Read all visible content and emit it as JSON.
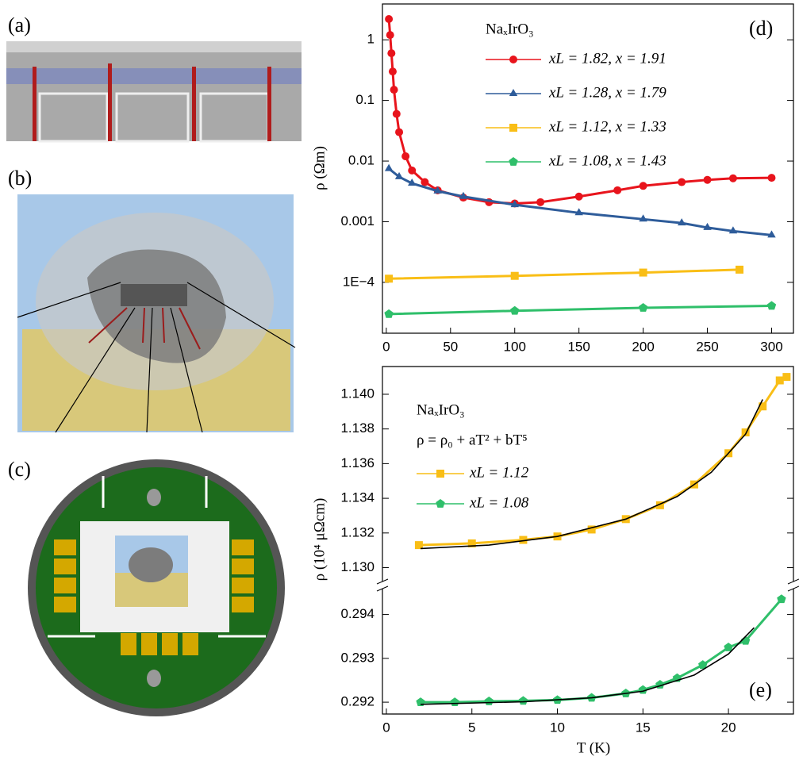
{
  "panels": [
    "(a)",
    "(b)",
    "(c)"
  ],
  "chart_data": [
    {
      "type": "line",
      "panel_label": "(d)",
      "log_y": true,
      "title": "NaₓIrO₃",
      "y_label": "ρ (Ωm)",
      "xlim": [
        -3,
        317
      ],
      "xticks": [
        0,
        50,
        100,
        150,
        200,
        250,
        300
      ],
      "ylim": [
        1.45e-05,
        3.9
      ],
      "yticks": [
        1,
        0.1,
        0.01,
        0.001,
        {
          "value": 0.0001,
          "label": "1E−4"
        }
      ],
      "series": [
        {
          "name": "xL = 1.82, x = 1.91",
          "color": "#e8141c",
          "marker": "circle",
          "x": [
            2,
            3,
            4,
            5,
            6,
            8,
            10,
            15,
            20,
            30,
            40,
            60,
            80,
            100,
            120,
            150,
            180,
            200,
            230,
            250,
            270,
            300
          ],
          "values": [
            2.2,
            1.2,
            0.6,
            0.3,
            0.15,
            0.06,
            0.03,
            0.012,
            0.007,
            0.0045,
            0.0033,
            0.0025,
            0.0021,
            0.002,
            0.0021,
            0.0026,
            0.0033,
            0.0039,
            0.0045,
            0.0049,
            0.0052,
            0.0053
          ]
        },
        {
          "name": "xL = 1.28, x = 1.79",
          "color": "#2e5c9a",
          "marker": "triangle",
          "x": [
            2,
            10,
            20,
            40,
            60,
            100,
            150,
            200,
            230,
            250,
            270,
            300
          ],
          "values": [
            0.0075,
            0.0055,
            0.0043,
            0.0032,
            0.0026,
            0.0019,
            0.0014,
            0.0011,
            0.00095,
            0.0008,
            0.0007,
            0.0006
          ]
        },
        {
          "name": "xL = 1.12, x = 1.33",
          "color": "#f9be16",
          "marker": "square",
          "x": [
            2,
            100,
            200,
            275
          ],
          "values": [
            0.000115,
            0.000128,
            0.000145,
            0.000162
          ]
        },
        {
          "name": "xL = 1.08, x = 1.43",
          "color": "#2fbf6a",
          "marker": "pentagon",
          "x": [
            2,
            100,
            200,
            300
          ],
          "values": [
            3e-05,
            3.4e-05,
            3.8e-05,
            4.1e-05
          ]
        }
      ]
    },
    {
      "type": "broken-line",
      "panel_label": "(e)",
      "title": "NaₓIrO₃",
      "annotation": "ρ = ρ₀ + aT² + bT⁵",
      "y_label": "ρ (10⁴ μΩcm)",
      "x_label": "T (K)",
      "xlim": [
        -0.23,
        23.8
      ],
      "xticks": [
        0,
        5,
        10,
        15,
        20
      ],
      "ylim_upper": [
        1.1292,
        1.1416
      ],
      "yticks_upper": [
        {
          "value": 1.13,
          "label": "1.130"
        },
        1.132,
        1.134,
        1.136,
        1.138,
        {
          "value": 1.14,
          "label": "1.140"
        }
      ],
      "ylim": [
        0.29173,
        0.29459
      ],
      "yticks": [
        0.292,
        0.293,
        0.294
      ],
      "series": [
        {
          "name": "xL = 1.12",
          "color": "#f9be16",
          "marker": "square",
          "axis": "upper",
          "x": [
            1.9,
            5,
            8,
            10,
            12,
            14,
            16,
            18,
            20,
            21,
            22,
            23,
            23.4
          ],
          "values": [
            1.1313,
            1.1314,
            1.1316,
            1.1318,
            1.1322,
            1.1328,
            1.1336,
            1.1348,
            1.1366,
            1.1378,
            1.1393,
            1.1408,
            1.141
          ]
        },
        {
          "name": "xL = 1.08",
          "color": "#2fbf6a",
          "marker": "pentagon",
          "axis": "lower",
          "x": [
            2,
            4,
            6,
            8,
            10,
            12,
            14,
            15,
            16,
            17,
            18.5,
            20,
            21,
            23.1
          ],
          "values": [
            0.292,
            0.292,
            0.29202,
            0.29203,
            0.29205,
            0.2921,
            0.2922,
            0.29228,
            0.2924,
            0.29255,
            0.29285,
            0.29325,
            0.2934,
            0.29435
          ]
        },
        {
          "color": "#000000",
          "axis": "upper",
          "x": [
            2,
            6,
            10,
            14,
            17,
            19,
            21,
            22
          ],
          "values": [
            1.1311,
            1.1313,
            1.1318,
            1.1328,
            1.1341,
            1.1355,
            1.1377,
            1.1397
          ]
        },
        {
          "color": "#000000",
          "axis": "lower",
          "x": [
            2,
            8,
            12,
            15,
            18,
            20,
            21.5
          ],
          "values": [
            0.29195,
            0.29201,
            0.2921,
            0.29225,
            0.29262,
            0.2931,
            0.2937
          ]
        }
      ]
    }
  ]
}
